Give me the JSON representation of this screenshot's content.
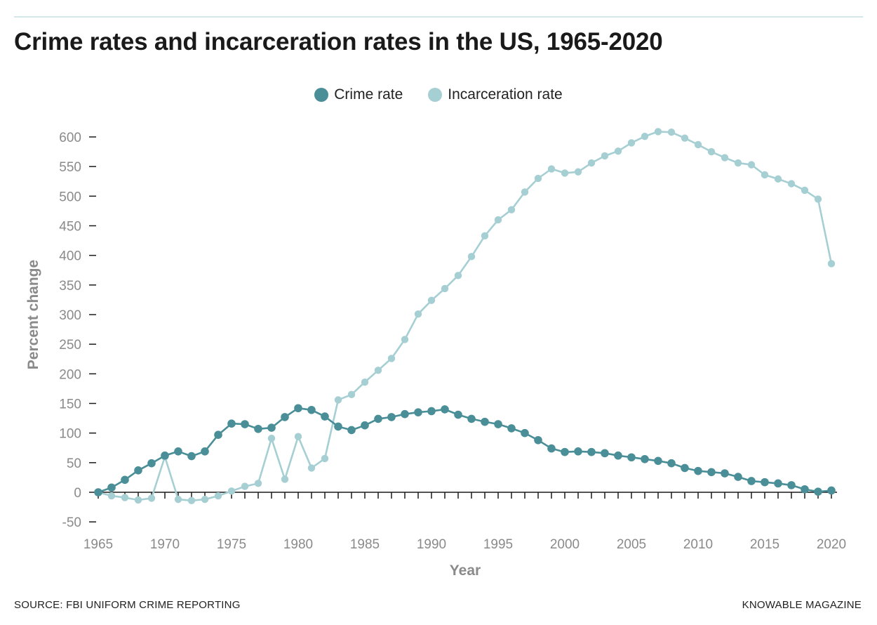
{
  "header": {
    "title": "Crime rates and incarceration rates in the US, 1965-2020"
  },
  "footer": {
    "source": "SOURCE: FBI UNIFORM CRIME REPORTING",
    "brand": "KNOWABLE MAGAZINE"
  },
  "colors": {
    "crime": "#4a8e97",
    "incarceration": "#a6cfd3",
    "axis": "#1a1a1a",
    "tick_label": "#8a8a8a"
  },
  "chart_data": {
    "type": "line",
    "title": "Crime rates and incarceration rates in the US, 1965-2020",
    "xlabel": "Year",
    "ylabel": "Percent change",
    "xlim": [
      1965,
      2020
    ],
    "ylim": [
      -50,
      600
    ],
    "x_ticks": [
      1965,
      1970,
      1975,
      1980,
      1985,
      1990,
      1995,
      2000,
      2005,
      2010,
      2015,
      2020
    ],
    "y_ticks": [
      -50,
      0,
      50,
      100,
      150,
      200,
      250,
      300,
      350,
      400,
      450,
      500,
      550,
      600
    ],
    "legend_position": "top-center",
    "grid": false,
    "x": [
      1965,
      1966,
      1967,
      1968,
      1969,
      1970,
      1971,
      1972,
      1973,
      1974,
      1975,
      1976,
      1977,
      1978,
      1979,
      1980,
      1981,
      1982,
      1983,
      1984,
      1985,
      1986,
      1987,
      1988,
      1989,
      1990,
      1991,
      1992,
      1993,
      1994,
      1995,
      1996,
      1997,
      1998,
      1999,
      2000,
      2001,
      2002,
      2003,
      2004,
      2005,
      2006,
      2007,
      2008,
      2009,
      2010,
      2011,
      2012,
      2013,
      2014,
      2015,
      2016,
      2017,
      2018,
      2019,
      2020
    ],
    "series": [
      {
        "name": "Crime rate",
        "values": [
          0,
          8,
          21,
          37,
          49,
          62,
          69,
          61,
          69,
          97,
          116,
          115,
          107,
          109,
          127,
          142,
          139,
          128,
          111,
          105,
          113,
          124,
          127,
          132,
          135,
          137,
          140,
          131,
          124,
          119,
          115,
          108,
          100,
          88,
          74,
          68,
          69,
          68,
          66,
          62,
          59,
          56,
          53,
          49,
          41,
          36,
          34,
          32,
          26,
          19,
          17,
          15,
          12,
          5,
          1,
          3
        ]
      },
      {
        "name": "Incarceration rate",
        "values": [
          0,
          -6,
          -9,
          -13,
          -10,
          60,
          -12,
          -14,
          -12,
          -6,
          2,
          10,
          15,
          91,
          22,
          94,
          41,
          57,
          156,
          165,
          186,
          206,
          226,
          258,
          301,
          324,
          344,
          366,
          398,
          433,
          460,
          477,
          507,
          530,
          546,
          539,
          541,
          556,
          568,
          576,
          590,
          601,
          609,
          608,
          598,
          587,
          575,
          565,
          556,
          553,
          536,
          529,
          521,
          510,
          495,
          386
        ]
      }
    ]
  }
}
